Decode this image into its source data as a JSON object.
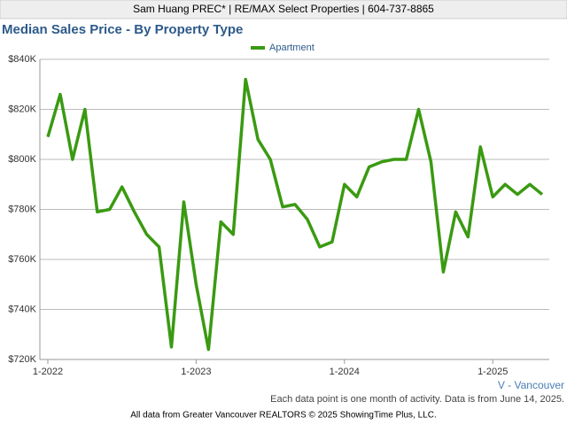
{
  "chart_data": {
    "type": "line",
    "header": "Sam Huang PREC* | RE/MAX Select Properties | 604-737-8865",
    "title": "Median Sales Price - By Property Type",
    "region": "V - Vancouver",
    "note": "Each data point is one month of activity. Data is from June 14, 2025.",
    "source": "All data from Greater Vancouver REALTORS © 2025 ShowingTime Plus, LLC.",
    "categories": [
      "1-2022",
      null,
      null,
      null,
      null,
      null,
      null,
      null,
      null,
      null,
      null,
      null,
      "1-2023",
      null,
      null,
      null,
      null,
      null,
      null,
      null,
      null,
      null,
      null,
      null,
      "1-2024",
      null,
      null,
      null,
      null,
      null,
      null,
      null,
      null,
      null,
      null,
      null,
      "1-2025",
      null,
      null,
      null,
      null
    ],
    "series": [
      {
        "name": "Apartment",
        "color": "#3a9a12",
        "values": [
          809000,
          826000,
          800000,
          820000,
          779000,
          780000,
          789000,
          779000,
          770000,
          765000,
          725000,
          783000,
          750000,
          724000,
          775000,
          770000,
          832000,
          808000,
          800000,
          781000,
          782000,
          776000,
          765000,
          767000,
          790000,
          785000,
          797000,
          799000,
          800000,
          800000,
          820000,
          799000,
          755000,
          779000,
          769000,
          805000,
          785000,
          790000,
          786000,
          790000,
          786000
        ]
      }
    ],
    "ylim": [
      720000,
      840000
    ],
    "yticks": [
      {
        "value": 720000,
        "label": "$720K"
      },
      {
        "value": 740000,
        "label": "$740K"
      },
      {
        "value": 760000,
        "label": "$760K"
      },
      {
        "value": 780000,
        "label": "$780K"
      },
      {
        "value": 800000,
        "label": "$800K"
      },
      {
        "value": 820000,
        "label": "$820K"
      },
      {
        "value": 840000,
        "label": "$840K"
      }
    ],
    "grid": true,
    "legend": "top"
  }
}
